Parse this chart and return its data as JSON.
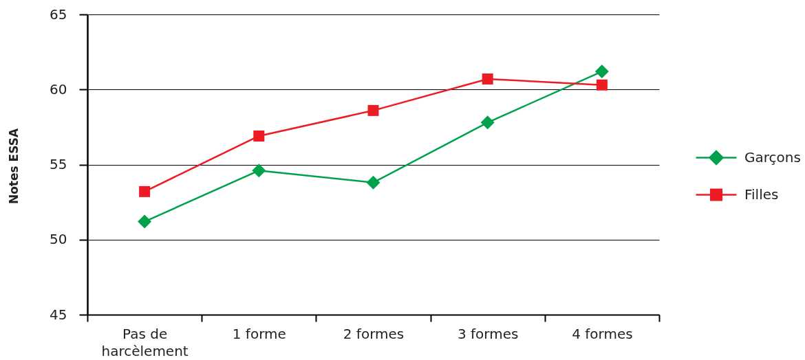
{
  "chart_data": {
    "type": "line",
    "ylabel": "Notes ESSA",
    "categories": [
      "Pas de harcèlement",
      "1 forme",
      "2 formes",
      "3 formes",
      "4 formes"
    ],
    "series": [
      {
        "name": "Garçons",
        "color": "#00a14b",
        "marker": "diamond",
        "values": [
          51.2,
          54.6,
          53.8,
          57.8,
          61.2
        ]
      },
      {
        "name": "Filles",
        "color": "#ed1c24",
        "marker": "square",
        "values": [
          53.2,
          56.9,
          58.6,
          60.7,
          60.3
        ]
      }
    ],
    "ylim": [
      45,
      65
    ],
    "yticks": [
      45,
      50,
      55,
      60,
      65
    ],
    "grid": "y",
    "legend": "right",
    "line_style": "solid"
  }
}
